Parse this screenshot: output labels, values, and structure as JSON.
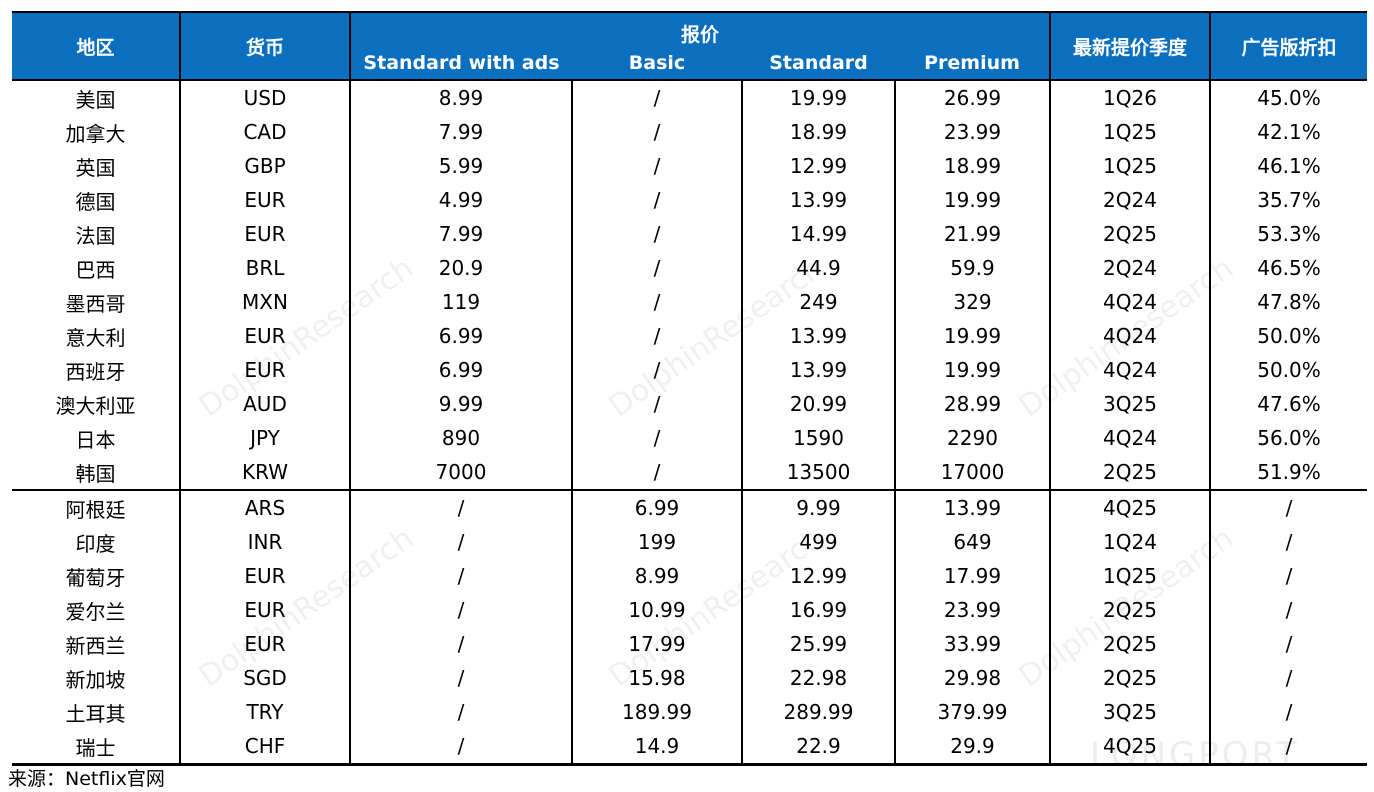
{
  "header": {
    "region": "地区",
    "currency": "货币",
    "price_group": "报价",
    "plans": [
      "Standard with ads",
      "Basic",
      "Standard",
      "Premium"
    ],
    "latest_hike": "最新提价季度",
    "ad_discount": "广告版折扣"
  },
  "rows": [
    [
      "美国",
      "USD",
      "8.99",
      "/",
      "19.99",
      "26.99",
      "1Q26",
      "45.0%"
    ],
    [
      "加拿大",
      "CAD",
      "7.99",
      "/",
      "18.99",
      "23.99",
      "1Q25",
      "42.1%"
    ],
    [
      "英国",
      "GBP",
      "5.99",
      "/",
      "12.99",
      "18.99",
      "1Q25",
      "46.1%"
    ],
    [
      "德国",
      "EUR",
      "4.99",
      "/",
      "13.99",
      "19.99",
      "2Q24",
      "35.7%"
    ],
    [
      "法国",
      "EUR",
      "7.99",
      "/",
      "14.99",
      "21.99",
      "2Q25",
      "53.3%"
    ],
    [
      "巴西",
      "BRL",
      "20.9",
      "/",
      "44.9",
      "59.9",
      "2Q24",
      "46.5%"
    ],
    [
      "墨西哥",
      "MXN",
      "119",
      "/",
      "249",
      "329",
      "4Q24",
      "47.8%"
    ],
    [
      "意大利",
      "EUR",
      "6.99",
      "/",
      "13.99",
      "19.99",
      "4Q24",
      "50.0%"
    ],
    [
      "西班牙",
      "EUR",
      "6.99",
      "/",
      "13.99",
      "19.99",
      "4Q24",
      "50.0%"
    ],
    [
      "澳大利亚",
      "AUD",
      "9.99",
      "/",
      "20.99",
      "28.99",
      "3Q25",
      "47.6%"
    ],
    [
      "日本",
      "JPY",
      "890",
      "/",
      "1590",
      "2290",
      "4Q24",
      "56.0%"
    ],
    [
      "韩国",
      "KRW",
      "7000",
      "/",
      "13500",
      "17000",
      "2Q25",
      "51.9%"
    ],
    [
      "阿根廷",
      "ARS",
      "/",
      "6.99",
      "9.99",
      "13.99",
      "4Q25",
      "/"
    ],
    [
      "印度",
      "INR",
      "/",
      "199",
      "499",
      "649",
      "1Q24",
      "/"
    ],
    [
      "葡萄牙",
      "EUR",
      "/",
      "8.99",
      "12.99",
      "17.99",
      "1Q25",
      "/"
    ],
    [
      "爱尔兰",
      "EUR",
      "/",
      "10.99",
      "16.99",
      "23.99",
      "2Q25",
      "/"
    ],
    [
      "新西兰",
      "EUR",
      "/",
      "17.99",
      "25.99",
      "33.99",
      "2Q25",
      "/"
    ],
    [
      "新加坡",
      "SGD",
      "/",
      "15.98",
      "22.98",
      "29.98",
      "2Q25",
      "/"
    ],
    [
      "土耳其",
      "TRY",
      "/",
      "189.99",
      "289.99",
      "379.99",
      "3Q25",
      "/"
    ],
    [
      "瑞士",
      "CHF",
      "/",
      "14.9",
      "22.9",
      "29.9",
      "4Q25",
      "/"
    ]
  ],
  "separator_after_row": 12,
  "source": "来源：Netflix官网",
  "watermark": "DolphinResearch",
  "logo": "LONGPORT",
  "colors": {
    "header_bg": "#0B6FBF",
    "header_text": "#FFFFFF"
  }
}
